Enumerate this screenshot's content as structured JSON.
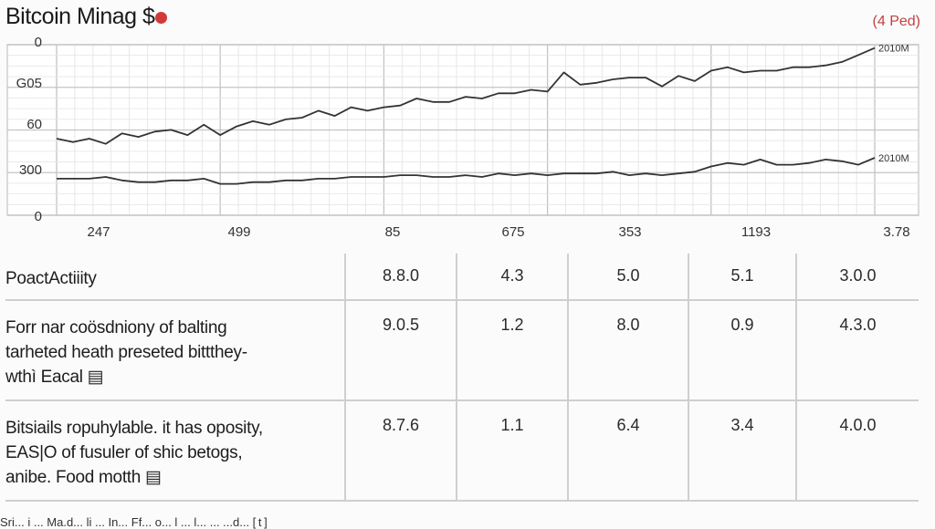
{
  "header": {
    "title": "Bitcoin Minag $",
    "badge_color": "#d23a3a",
    "period": "(4 Ped)"
  },
  "chart_data": {
    "type": "line",
    "title": "Bitcoin Minag $",
    "y_tick_labels": [
      "0",
      "G05",
      "60",
      "300",
      "0"
    ],
    "x_tick_labels": [
      "247",
      "499",
      "85",
      "675",
      "353",
      "1193",
      "3.78"
    ],
    "series": [
      {
        "name": "",
        "end_label": "2010M",
        "color": "#333333",
        "values": [
          4.4,
          4.2,
          4.4,
          4.1,
          4.7,
          4.5,
          4.8,
          4.9,
          4.6,
          5.2,
          4.6,
          5.1,
          5.4,
          5.2,
          5.5,
          5.6,
          6.0,
          5.7,
          6.2,
          6.0,
          6.2,
          6.3,
          6.7,
          6.5,
          6.5,
          6.8,
          6.7,
          7.0,
          7.0,
          7.2,
          7.1,
          8.2,
          7.5,
          7.6,
          7.8,
          7.9,
          7.9,
          7.4,
          8.0,
          7.7,
          8.3,
          8.5,
          8.2,
          8.3,
          8.3,
          8.5,
          8.5,
          8.6,
          8.8,
          9.2,
          9.6
        ]
      },
      {
        "name": "",
        "end_label": "2010M",
        "color": "#333333",
        "values": [
          2.1,
          2.1,
          2.1,
          2.2,
          2.0,
          1.9,
          1.9,
          2.0,
          2.0,
          2.1,
          1.8,
          1.8,
          1.9,
          1.9,
          2.0,
          2.0,
          2.1,
          2.1,
          2.2,
          2.2,
          2.2,
          2.3,
          2.3,
          2.2,
          2.2,
          2.3,
          2.2,
          2.4,
          2.3,
          2.4,
          2.3,
          2.4,
          2.4,
          2.4,
          2.5,
          2.3,
          2.4,
          2.3,
          2.4,
          2.5,
          2.8,
          3.0,
          2.9,
          3.2,
          2.9,
          2.9,
          3.0,
          3.2,
          3.1,
          2.9,
          3.3
        ]
      }
    ],
    "grid": true
  },
  "table": {
    "rows": [
      {
        "label": [
          "PoactActiiity"
        ],
        "values": [
          "8.8.0",
          "4.3",
          "5.0",
          "5.1",
          "3.0.0"
        ]
      },
      {
        "label": [
          "Forr nar coösdniony of balting",
          "tarheted heath preseted bittthey-",
          "wthì Eacal ▤"
        ],
        "values": [
          "9.0.5",
          "1.2",
          "8.0",
          "0.9",
          "4.3.0"
        ]
      },
      {
        "label": [
          "Bitsiails ropuhylable. it has oposity,",
          "EAS|O of fusuler of shic betogs,",
          "anibe. Food motth ▤"
        ],
        "values": [
          "8.7.6",
          "1.1",
          "6.4",
          "3.4",
          "4.0.0"
        ]
      }
    ]
  },
  "footer": {
    "text": "Sri... i  ... Ma.d... li ... In...  Ff... o... l ... l... ... ...d... [ t ]"
  }
}
